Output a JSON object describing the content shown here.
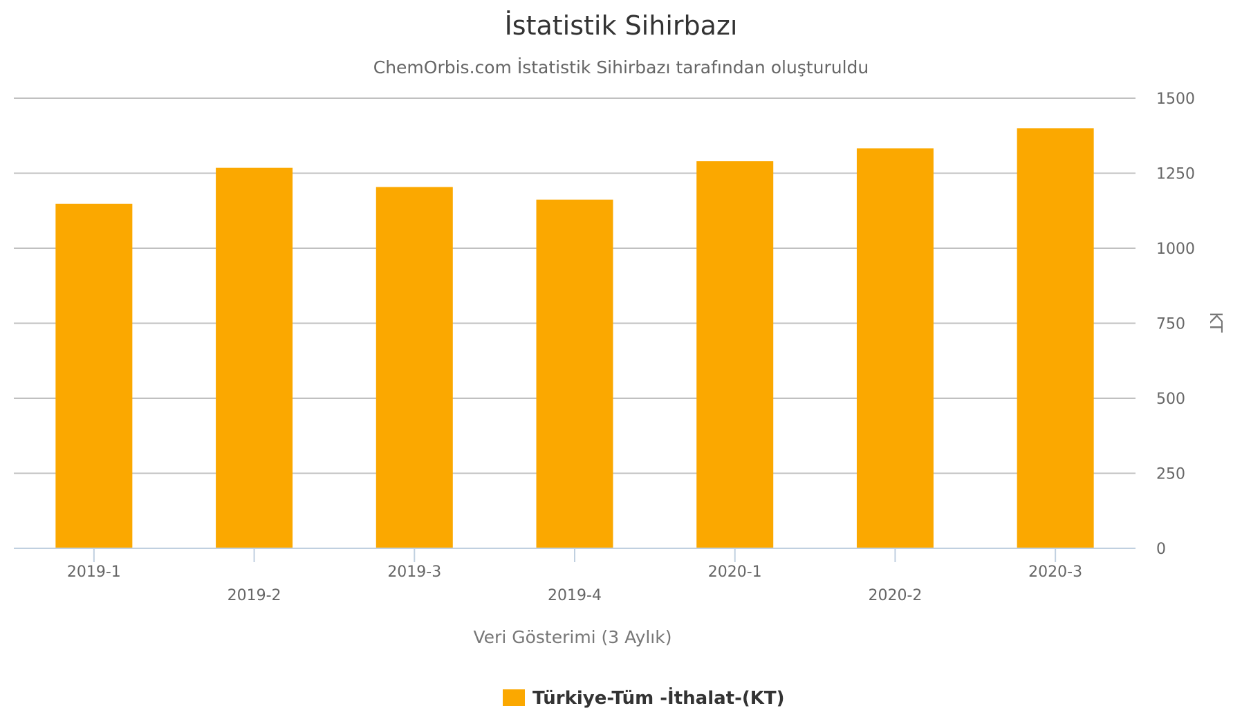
{
  "chart_data": {
    "type": "bar",
    "title": "İstatistik Sihirbazı",
    "subtitle": "ChemOrbis.com İstatistik Sihirbazı tarafından oluşturuldu",
    "xlabel": "Veri Gösterimi (3 Aylık)",
    "ylabel": "KT",
    "categories": [
      "2019-1",
      "2019-2",
      "2019-3",
      "2019-4",
      "2020-1",
      "2020-2",
      "2020-3"
    ],
    "series": [
      {
        "name": "Türkiye-Tüm -İthalat-(KT)",
        "color": "#fba800",
        "values": [
          1148,
          1268,
          1204,
          1162,
          1290,
          1333,
          1400
        ]
      }
    ],
    "ylim": [
      0,
      1500
    ],
    "yticks": [
      0,
      250,
      500,
      750,
      1000,
      1250,
      1500
    ],
    "y_axis_side": "right",
    "grid": true,
    "legend_position": "bottom-center"
  }
}
